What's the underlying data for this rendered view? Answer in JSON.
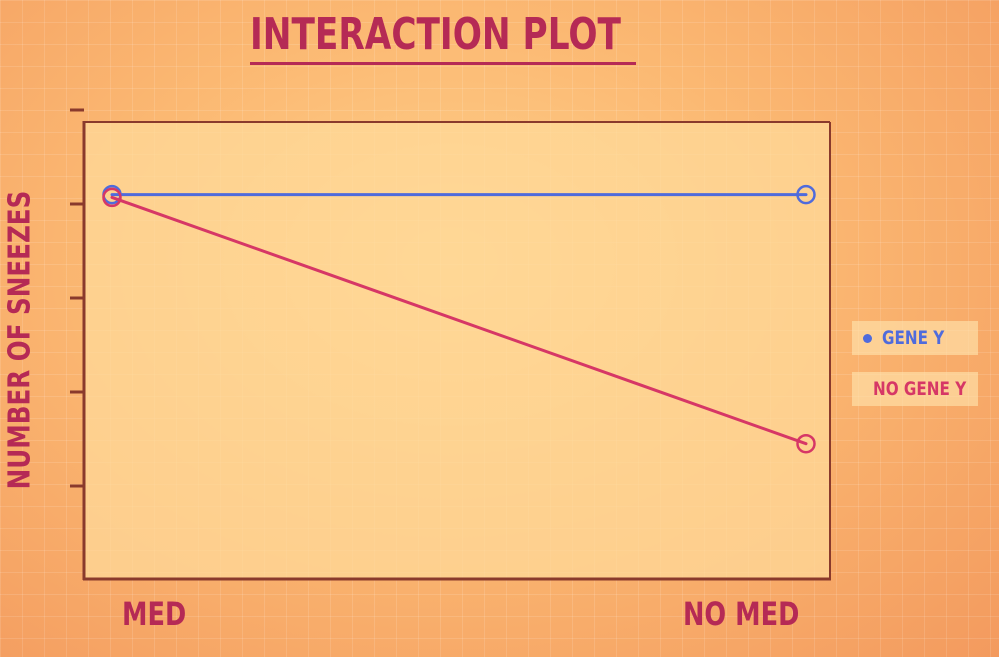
{
  "chart_data": {
    "type": "line",
    "title": "INTERACTION PLOT",
    "xlabel": "",
    "ylabel": "NUMBER OF SNEEZES",
    "categories": [
      "MED",
      "NO MED"
    ],
    "ylim": [
      0,
      5
    ],
    "yticks": [
      1,
      2,
      3,
      4,
      5
    ],
    "grid": false,
    "legend_position": "right",
    "series": [
      {
        "name": "GENE Y",
        "values": [
          4.1,
          4.1
        ],
        "color": "#4f6bdc"
      },
      {
        "name": "NO GENE Y",
        "values": [
          4.07,
          1.45
        ],
        "color": "#d63766"
      }
    ]
  },
  "colors": {
    "text": "#b52a55",
    "axis": "#8a3a2c",
    "plot_bg": "#ffd99a"
  }
}
